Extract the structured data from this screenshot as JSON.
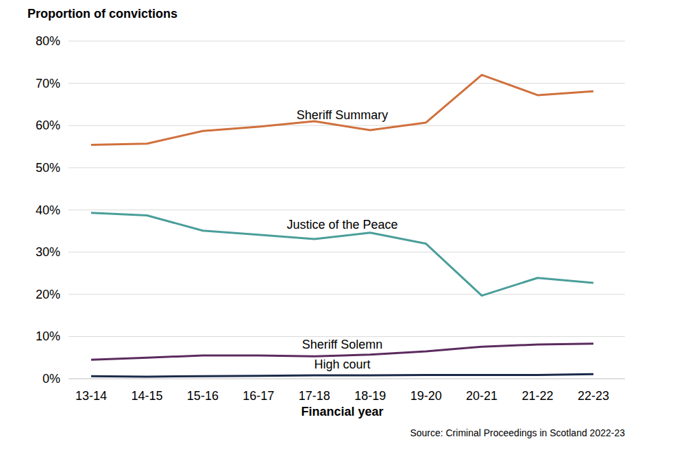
{
  "chart_data": {
    "type": "line",
    "y_label": "Proportion of convictions",
    "x_label": "Financial year",
    "source": "Source: Criminal Proceedings in Scotland 2022-23",
    "categories": [
      "13-14",
      "14-15",
      "15-16",
      "16-17",
      "17-18",
      "18-19",
      "19-20",
      "20-21",
      "21-22",
      "22-23"
    ],
    "series": [
      {
        "name": "Sheriff Summary",
        "color": "#d0703c",
        "values": [
          55.4,
          55.7,
          58.7,
          59.7,
          61.0,
          58.9,
          60.7,
          72.0,
          67.2,
          68.1
        ]
      },
      {
        "name": "Justice of the Peace",
        "color": "#4a9e9a",
        "values": [
          39.3,
          38.7,
          35.1,
          34.1,
          33.1,
          34.6,
          32.0,
          19.7,
          23.9,
          22.7
        ]
      },
      {
        "name": "Sheriff Solemn",
        "color": "#5b2a5e",
        "values": [
          4.5,
          5.0,
          5.5,
          5.5,
          5.3,
          5.7,
          6.5,
          7.6,
          8.1,
          8.3
        ]
      },
      {
        "name": "High court",
        "color": "#1b2a4a",
        "values": [
          0.6,
          0.5,
          0.6,
          0.7,
          0.8,
          0.8,
          0.9,
          0.9,
          0.9,
          1.1
        ]
      }
    ],
    "ylim": [
      0,
      80
    ],
    "yticks": [
      {
        "value": 0,
        "label": "0%"
      },
      {
        "value": 10,
        "label": "10%"
      },
      {
        "value": 20,
        "label": "20%"
      },
      {
        "value": 30,
        "label": "30%"
      },
      {
        "value": 40,
        "label": "40%"
      },
      {
        "value": 50,
        "label": "50%"
      },
      {
        "value": 60,
        "label": "60%"
      },
      {
        "value": 70,
        "label": "70%"
      },
      {
        "value": 80,
        "label": "80%"
      }
    ],
    "grid": true
  }
}
